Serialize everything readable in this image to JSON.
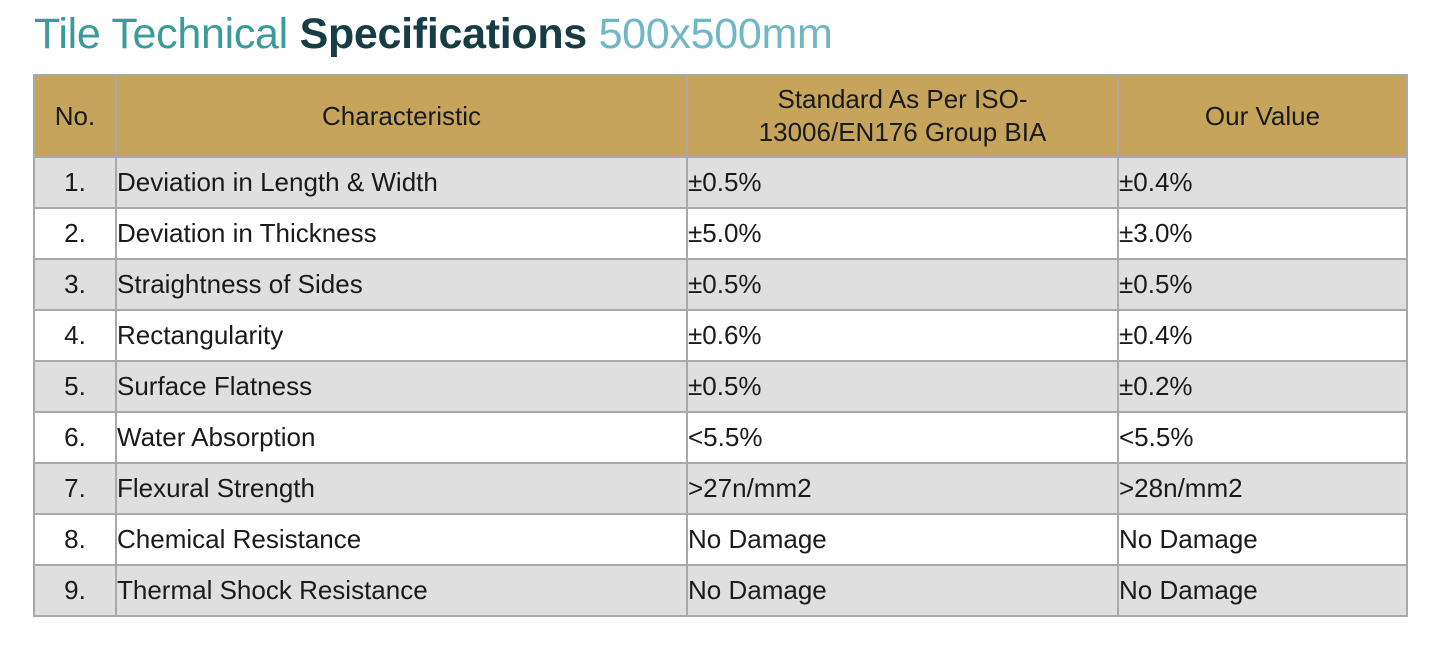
{
  "title": {
    "part1": "Tile Technical ",
    "part2": "Specifications",
    "part3": " 500x500mm"
  },
  "table": {
    "headers": {
      "no": "No.",
      "characteristic": "Characteristic",
      "standard_line1": "Standard As Per ISO-",
      "standard_line2": "13006/EN176 Group BIA",
      "our_value": "Our Value"
    },
    "rows": [
      {
        "no": "1.",
        "characteristic": "Deviation in Length & Width",
        "standard": "±0.5%",
        "our_value": "±0.4%"
      },
      {
        "no": "2.",
        "characteristic": "Deviation in Thickness",
        "standard": "±5.0%",
        "our_value": "±3.0%"
      },
      {
        "no": "3.",
        "characteristic": "Straightness of Sides",
        "standard": "±0.5%",
        "our_value": "±0.5%"
      },
      {
        "no": "4.",
        "characteristic": "Rectangularity",
        "standard": "±0.6%",
        "our_value": "±0.4%"
      },
      {
        "no": "5.",
        "characteristic": "Surface Flatness",
        "standard": "±0.5%",
        "our_value": "±0.2%"
      },
      {
        "no": "6.",
        "characteristic": "Water Absorption",
        "standard": "<5.5%",
        "our_value": "<5.5%"
      },
      {
        "no": "7.",
        "characteristic": "Flexural Strength",
        "standard": ">27n/mm2",
        "our_value": ">28n/mm2"
      },
      {
        "no": "8.",
        "characteristic": "Chemical Resistance",
        "standard": "No Damage",
        "our_value": "No Damage"
      },
      {
        "no": "9.",
        "characteristic": "Thermal Shock Resistance",
        "standard": "No Damage",
        "our_value": "No Damage"
      }
    ]
  },
  "colors": {
    "title_light": "#3a9a9c",
    "title_dark": "#173d44",
    "title_size": "#6fb7c4",
    "header_bg": "#c6a45c",
    "row_alt_bg": "#dfdfdf",
    "border": "#a9a9a9"
  }
}
